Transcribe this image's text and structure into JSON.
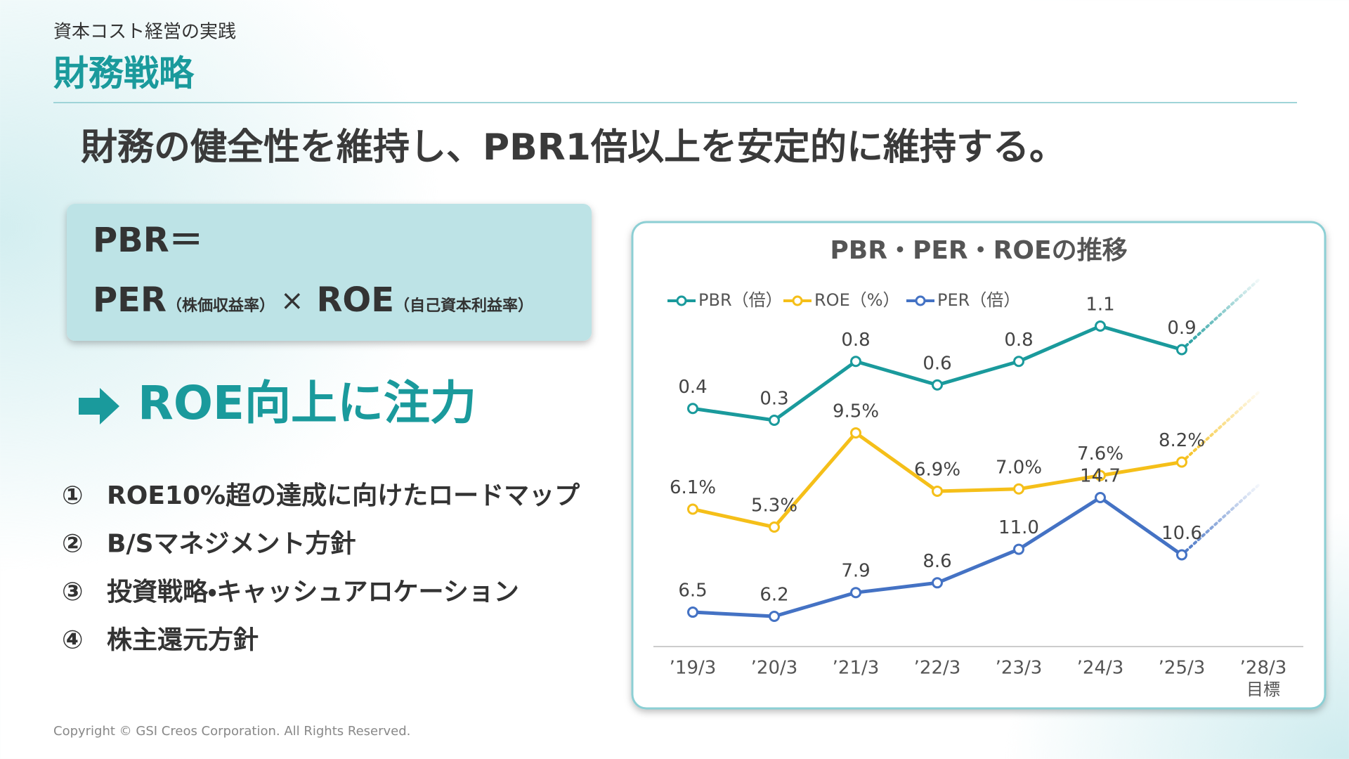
{
  "header": {
    "section": "資本コスト経営の実践",
    "title": "財務戦略"
  },
  "headline": "財務の健全性を維持し、PBR1倍以上を安定的に維持する。",
  "formula": {
    "lhs": "PBR＝",
    "per": "PER",
    "per_note": "（株価収益率）",
    "times": "×",
    "roe": "ROE",
    "roe_note": "（自己資本利益率）"
  },
  "focus": "ROE向上に注力",
  "agenda": [
    {
      "number": "①",
      "text": "ROE10%超の達成に向けたロードマップ"
    },
    {
      "number": "②",
      "text": "B/Sマネジメント方針"
    },
    {
      "number": "③",
      "text": "投資戦略・キャッシュアロケーション"
    },
    {
      "number": "④",
      "text": "株主還元方針"
    }
  ],
  "copyright": "Copyright © GSI Creos Corporation. All Rights Reserved.",
  "chart_data": {
    "type": "line",
    "title": "PBR・PER・ROEの推移",
    "categories": [
      "’19/3",
      "’20/3",
      "’21/3",
      "’22/3",
      "’23/3",
      "’24/3",
      "’25/3",
      "’28/3"
    ],
    "target_label": "目標",
    "series": [
      {
        "name": "PBR（倍）",
        "color": "#1a9a9c",
        "values": [
          0.4,
          0.3,
          0.8,
          0.6,
          0.8,
          1.1,
          0.9,
          null
        ]
      },
      {
        "name": "ROE（%）",
        "color": "#f5bf19",
        "values": [
          6.1,
          5.3,
          9.5,
          6.9,
          7.0,
          7.6,
          8.2,
          null
        ],
        "value_labels": [
          "6.1%",
          "5.3%",
          "9.5%",
          "6.9%",
          "7.0%",
          "7.6%",
          "8.2%",
          null
        ]
      },
      {
        "name": "PER（倍）",
        "color": "#4472c4",
        "values": [
          6.5,
          6.2,
          7.9,
          8.6,
          11.0,
          14.7,
          10.6,
          null
        ],
        "value_labels": [
          "6.5",
          "6.2",
          "7.9",
          "8.6",
          "11.0",
          "14.7",
          "10.6",
          null
        ]
      }
    ],
    "legend": "top-left"
  }
}
